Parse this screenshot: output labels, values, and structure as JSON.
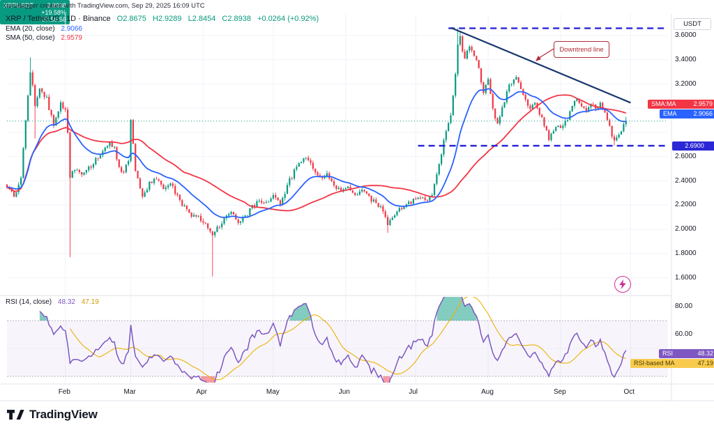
{
  "attribution": "ranadagger created with TradingView.com, Sep 29, 2025 16:09 UTC",
  "header": {
    "symbol_line": "XRP / TetherUS · 1D · Binance",
    "o": "O2.8675",
    "h": "H2.9289",
    "l": "L2.8454",
    "c": "C2.8938",
    "change": "+0.0264 (+0.92%)"
  },
  "indicators": {
    "ema": {
      "label": "EMA (20, close)",
      "value": "2.9066"
    },
    "sma": {
      "label": "SMA (50, close)",
      "value": "2.9579"
    },
    "rsi": {
      "label": "RSI (14, close)",
      "value": "48.32",
      "ma_value": "47.19"
    }
  },
  "price_scale": {
    "currency": "USDT",
    "ticks": [
      {
        "label": "3.6000",
        "price": 3.6
      },
      {
        "label": "3.4000",
        "price": 3.4
      },
      {
        "label": "3.2000",
        "price": 3.2
      },
      {
        "label": "2.6000",
        "price": 2.6
      },
      {
        "label": "2.4000",
        "price": 2.4
      },
      {
        "label": "2.2000",
        "price": 2.2
      },
      {
        "label": "2.0000",
        "price": 2.0
      },
      {
        "label": "1.8000",
        "price": 1.8
      },
      {
        "label": "1.6000",
        "price": 1.6
      }
    ],
    "badges": {
      "sma": {
        "label": "SMA:MA",
        "value": "2.9579"
      },
      "ema": {
        "label": "EMA",
        "value": "2.9066"
      },
      "last": {
        "symbol": "XRPUSDT",
        "value": "2.8938",
        "change": "+19.58%",
        "countdown": "07:50:56"
      },
      "level": {
        "value": "2.6900"
      }
    }
  },
  "rsi_scale": {
    "ticks": [
      {
        "label": "80.00",
        "value": 80
      },
      {
        "label": "60.00",
        "value": 60
      }
    ],
    "badges": {
      "rsi": {
        "label": "RSI",
        "value": "48.32"
      },
      "ma": {
        "label": "RSI-based MA",
        "value": "47.19"
      }
    }
  },
  "time_axis": {
    "months": [
      {
        "label": "Feb",
        "day": 25
      },
      {
        "label": "Mar",
        "day": 53
      },
      {
        "label": "Apr",
        "day": 84
      },
      {
        "label": "May",
        "day": 114
      },
      {
        "label": "Jun",
        "day": 145
      },
      {
        "label": "Jul",
        "day": 175
      },
      {
        "label": "Aug",
        "day": 206
      },
      {
        "label": "Sep",
        "day": 237
      },
      {
        "label": "Oct",
        "day": 267
      }
    ]
  },
  "annotations": {
    "upper_level": {
      "price": 3.66,
      "from_day": 189
    },
    "lower_level": {
      "price": 2.69,
      "from_day": 176
    },
    "trendline": {
      "from_day": 190,
      "from_price": 3.665,
      "to_day": 267,
      "to_price": 3.045
    },
    "callout": {
      "text": "Downtrend line"
    }
  },
  "logo": {
    "text": "TradingView"
  },
  "colors": {
    "up": "#089981",
    "down": "#f23645",
    "ema": "#2962ff",
    "sma": "#f23645",
    "rsi": "#7e57c2",
    "rsi_ma": "#edb005",
    "level": "#2b27d6",
    "trend": "#17366f",
    "callout": "#b02a37",
    "grid": "#f0f3fa",
    "frame": "#e0e3eb",
    "last_line": "#089981"
  },
  "chart_data": {
    "type": "candlestick",
    "symbol": "XRP/USDT",
    "interval": "1D",
    "days": 266,
    "price_axis": {
      "min": 1.55,
      "max": 3.7,
      "tick_step": 0.2
    },
    "rsi_axis": {
      "levels": [
        70,
        50,
        30
      ],
      "visible_ticks": [
        80,
        60
      ]
    },
    "keyframes": [
      [
        0,
        2.35
      ],
      [
        3,
        2.28
      ],
      [
        6,
        2.42
      ],
      [
        9,
        3.1
      ],
      [
        10,
        3.32
      ],
      [
        12,
        3.02
      ],
      [
        14,
        3.18
      ],
      [
        17,
        3.08
      ],
      [
        20,
        2.86
      ],
      [
        23,
        3.04
      ],
      [
        25,
        2.96
      ],
      [
        26,
        2.8
      ],
      [
        27,
        2.42
      ],
      [
        29,
        2.52
      ],
      [
        32,
        2.44
      ],
      [
        35,
        2.5
      ],
      [
        38,
        2.58
      ],
      [
        41,
        2.64
      ],
      [
        44,
        2.71
      ],
      [
        46,
        2.66
      ],
      [
        49,
        2.46
      ],
      [
        52,
        2.55
      ],
      [
        53,
        2.9
      ],
      [
        55,
        2.5
      ],
      [
        58,
        2.26
      ],
      [
        61,
        2.38
      ],
      [
        64,
        2.42
      ],
      [
        67,
        2.33
      ],
      [
        70,
        2.38
      ],
      [
        73,
        2.28
      ],
      [
        76,
        2.18
      ],
      [
        79,
        2.12
      ],
      [
        82,
        2.1
      ],
      [
        85,
        2.05
      ],
      [
        88,
        1.94
      ],
      [
        90,
        2.01
      ],
      [
        93,
        2.08
      ],
      [
        96,
        2.14
      ],
      [
        99,
        2.06
      ],
      [
        102,
        2.11
      ],
      [
        105,
        2.18
      ],
      [
        108,
        2.24
      ],
      [
        111,
        2.21
      ],
      [
        114,
        2.28
      ],
      [
        117,
        2.21
      ],
      [
        120,
        2.36
      ],
      [
        123,
        2.48
      ],
      [
        126,
        2.56
      ],
      [
        128,
        2.6
      ],
      [
        131,
        2.52
      ],
      [
        134,
        2.42
      ],
      [
        137,
        2.47
      ],
      [
        140,
        2.36
      ],
      [
        143,
        2.31
      ],
      [
        146,
        2.35
      ],
      [
        149,
        2.28
      ],
      [
        152,
        2.32
      ],
      [
        155,
        2.26
      ],
      [
        158,
        2.22
      ],
      [
        161,
        2.16
      ],
      [
        163,
        2.05
      ],
      [
        165,
        2.09
      ],
      [
        168,
        2.16
      ],
      [
        171,
        2.2
      ],
      [
        174,
        2.24
      ],
      [
        177,
        2.27
      ],
      [
        180,
        2.22
      ],
      [
        182,
        2.3
      ],
      [
        184,
        2.44
      ],
      [
        186,
        2.64
      ],
      [
        188,
        2.78
      ],
      [
        190,
        2.96
      ],
      [
        192,
        3.28
      ],
      [
        193,
        3.52
      ],
      [
        194,
        3.58
      ],
      [
        195,
        3.46
      ],
      [
        196,
        3.4
      ],
      [
        198,
        3.52
      ],
      [
        200,
        3.44
      ],
      [
        202,
        3.3
      ],
      [
        204,
        3.12
      ],
      [
        206,
        3.22
      ],
      [
        208,
        2.98
      ],
      [
        210,
        2.86
      ],
      [
        212,
        3.02
      ],
      [
        214,
        3.12
      ],
      [
        216,
        3.22
      ],
      [
        218,
        3.26
      ],
      [
        220,
        3.14
      ],
      [
        222,
        3.06
      ],
      [
        224,
        2.98
      ],
      [
        226,
        3.05
      ],
      [
        228,
        2.96
      ],
      [
        230,
        2.87
      ],
      [
        232,
        2.74
      ],
      [
        234,
        2.82
      ],
      [
        236,
        2.86
      ],
      [
        238,
        2.84
      ],
      [
        240,
        2.92
      ],
      [
        242,
        3.02
      ],
      [
        244,
        3.07
      ],
      [
        246,
        3.02
      ],
      [
        248,
        2.98
      ],
      [
        250,
        3.04
      ],
      [
        252,
        2.99
      ],
      [
        254,
        3.05
      ],
      [
        256,
        2.94
      ],
      [
        258,
        2.84
      ],
      [
        260,
        2.72
      ],
      [
        262,
        2.79
      ],
      [
        264,
        2.86
      ],
      [
        265,
        2.8938
      ]
    ],
    "wick_overrides": [
      {
        "day": 10,
        "high": 3.42
      },
      {
        "day": 12,
        "low": 2.75
      },
      {
        "day": 27,
        "low": 1.77
      },
      {
        "day": 88,
        "low": 1.61
      },
      {
        "day": 163,
        "low": 1.97
      },
      {
        "day": 193,
        "high": 3.66
      },
      {
        "day": 194,
        "high": 3.64
      },
      {
        "day": 260,
        "low": 2.69
      }
    ],
    "last_candle": {
      "open": 2.8675,
      "high": 2.9289,
      "low": 2.8454,
      "close": 2.8938
    },
    "overlays": [
      {
        "name": "EMA",
        "period": 20,
        "source": "close",
        "last_value": 2.9066
      },
      {
        "name": "SMA",
        "period": 50,
        "source": "close",
        "last_value": 2.9579
      }
    ],
    "rsi_panel": {
      "period": 14,
      "source": "close",
      "last_value": 48.32,
      "ma_period": 14,
      "ma_last_value": 47.19
    }
  }
}
